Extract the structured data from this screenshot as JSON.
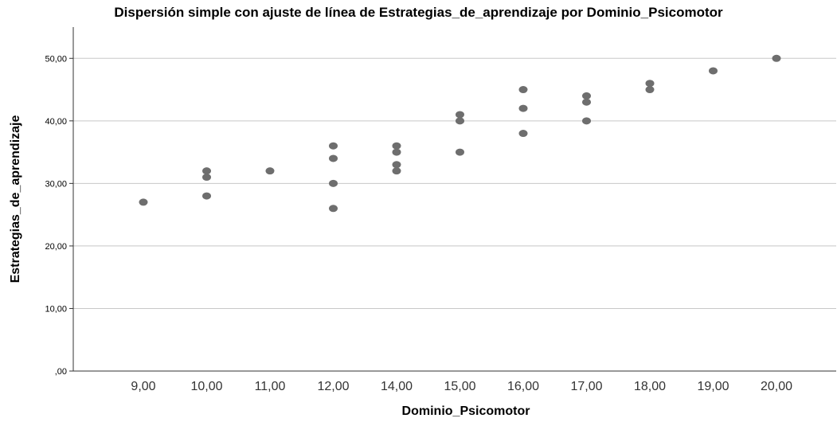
{
  "chart_data": {
    "type": "scatter",
    "title": "Dispersión simple con ajuste de línea de Estrategias_de_aprendizaje por Dominio_Psicomotor",
    "xlabel": "Dominio_Psicomotor",
    "ylabel": "Estrategias_de_aprendizaje",
    "x_categories": [
      "9,00",
      "10,00",
      "11,00",
      "12,00",
      "14,00",
      "15,00",
      "16,00",
      "17,00",
      "18,00",
      "19,00",
      "20,00"
    ],
    "y_ticks": [
      {
        "value": 0,
        "label": ",00"
      },
      {
        "value": 10,
        "label": "10,00"
      },
      {
        "value": 20,
        "label": "20,00"
      },
      {
        "value": 30,
        "label": "30,00"
      },
      {
        "value": 40,
        "label": "40,00"
      },
      {
        "value": 50,
        "label": "50,00"
      }
    ],
    "ylim": [
      0,
      55
    ],
    "grid": "horizontal",
    "point_color": "#6e6e6e",
    "points": [
      {
        "x": "9,00",
        "y": 27
      },
      {
        "x": "10,00",
        "y": 32
      },
      {
        "x": "10,00",
        "y": 31
      },
      {
        "x": "10,00",
        "y": 28
      },
      {
        "x": "11,00",
        "y": 32
      },
      {
        "x": "12,00",
        "y": 36
      },
      {
        "x": "12,00",
        "y": 34
      },
      {
        "x": "12,00",
        "y": 30
      },
      {
        "x": "12,00",
        "y": 26
      },
      {
        "x": "14,00",
        "y": 36
      },
      {
        "x": "14,00",
        "y": 35
      },
      {
        "x": "14,00",
        "y": 33
      },
      {
        "x": "14,00",
        "y": 32
      },
      {
        "x": "15,00",
        "y": 41
      },
      {
        "x": "15,00",
        "y": 40
      },
      {
        "x": "15,00",
        "y": 35
      },
      {
        "x": "16,00",
        "y": 45
      },
      {
        "x": "16,00",
        "y": 42
      },
      {
        "x": "16,00",
        "y": 38
      },
      {
        "x": "17,00",
        "y": 44
      },
      {
        "x": "17,00",
        "y": 43
      },
      {
        "x": "17,00",
        "y": 40
      },
      {
        "x": "18,00",
        "y": 46
      },
      {
        "x": "18,00",
        "y": 45
      },
      {
        "x": "19,00",
        "y": 48
      },
      {
        "x": "20,00",
        "y": 50
      }
    ]
  }
}
